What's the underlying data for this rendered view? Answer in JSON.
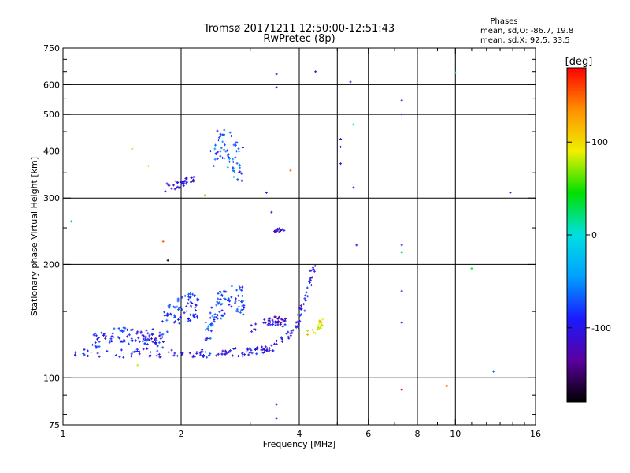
{
  "chart_data": {
    "type": "scatter",
    "title": "Tromsø 20171211 12:50:00-12:51:43",
    "subtitle": "RwPretec (8p)",
    "xlabel": "Frequency [MHz]",
    "ylabel": "Stationary phase Virtual Height [km]",
    "x_scale": "log",
    "y_scale": "log",
    "xlim": [
      1,
      16
    ],
    "ylim": [
      75,
      750
    ],
    "x_ticks": [
      {
        "value": 1,
        "label": "1"
      },
      {
        "value": 2,
        "label": "2"
      },
      {
        "value": 4,
        "label": "4"
      },
      {
        "value": 6,
        "label": "6"
      },
      {
        "value": 8,
        "label": "8"
      },
      {
        "value": 10,
        "label": "10"
      },
      {
        "value": 16,
        "label": "16"
      }
    ],
    "x_grid_lines": [
      2,
      4,
      5,
      6,
      8,
      10
    ],
    "y_ticks": [
      {
        "value": 75,
        "label": "75"
      },
      {
        "value": 100,
        "label": "100"
      },
      {
        "value": 200,
        "label": "200"
      },
      {
        "value": 300,
        "label": "300"
      },
      {
        "value": 400,
        "label": "400"
      },
      {
        "value": 500,
        "label": "500"
      },
      {
        "value": 600,
        "label": "600"
      },
      {
        "value": 750,
        "label": "750"
      }
    ],
    "y_grid_lines": [
      100,
      200,
      300,
      400,
      500,
      600
    ],
    "grid": true,
    "stats": {
      "header": "Phases",
      "line1": "mean, sd,O: -86.7, 19.8",
      "line2": "mean, sd,X:  92.5, 33.5"
    },
    "colorbar": {
      "label": "[deg]",
      "range": [
        -180,
        180
      ],
      "ticks": [
        {
          "value": 100,
          "label": "100"
        },
        {
          "value": 0,
          "label": "0"
        },
        {
          "value": -100,
          "label": "-100"
        }
      ],
      "stops": [
        "#000000",
        "#5a00a0",
        "#1a1aff",
        "#00a0ff",
        "#00e0e0",
        "#00e000",
        "#f0f000",
        "#ff9000",
        "#ff0000"
      ]
    },
    "traces": [
      {
        "kind": "band",
        "points": [
          [
            1.05,
            117
          ],
          [
            1.15,
            116
          ],
          [
            1.3,
            115
          ],
          [
            1.45,
            116
          ],
          [
            1.6,
            117
          ],
          [
            1.8,
            116
          ],
          [
            2.0,
            116
          ],
          [
            2.2,
            116
          ],
          [
            2.4,
            116
          ],
          [
            2.6,
            117
          ],
          [
            2.8,
            117
          ],
          [
            3.0,
            117
          ],
          [
            3.2,
            118
          ],
          [
            3.4,
            120
          ],
          [
            3.6,
            125
          ],
          [
            3.8,
            132
          ],
          [
            4.0,
            140
          ]
        ],
        "count": 140,
        "spread": 5,
        "phase": -100
      },
      {
        "kind": "band",
        "points": [
          [
            4.0,
            145
          ],
          [
            4.1,
            155
          ],
          [
            4.2,
            168
          ],
          [
            4.3,
            185
          ],
          [
            4.35,
            200
          ]
        ],
        "count": 30,
        "spread": 4,
        "phase": -95
      },
      {
        "kind": "band",
        "points": [
          [
            1.2,
            125
          ],
          [
            1.4,
            130
          ],
          [
            1.6,
            128
          ],
          [
            1.8,
            125
          ]
        ],
        "count": 90,
        "spread": 10,
        "phase": -90
      },
      {
        "kind": "band",
        "points": [
          [
            1.7,
            125
          ],
          [
            1.9,
            150
          ],
          [
            2.1,
            155
          ],
          [
            2.2,
            150
          ]
        ],
        "count": 80,
        "spread": 18,
        "phase": -85
      },
      {
        "kind": "band",
        "points": [
          [
            2.3,
            130
          ],
          [
            2.5,
            155
          ],
          [
            2.7,
            165
          ],
          [
            2.9,
            160
          ]
        ],
        "count": 90,
        "spread": 18,
        "phase": -80
      },
      {
        "kind": "band",
        "points": [
          [
            3.0,
            135
          ],
          [
            3.3,
            140
          ],
          [
            3.5,
            142
          ],
          [
            3.7,
            140
          ]
        ],
        "count": 45,
        "spread": 6,
        "phase": -110
      },
      {
        "kind": "band",
        "points": [
          [
            1.8,
            318
          ],
          [
            2.0,
            328
          ],
          [
            2.15,
            340
          ]
        ],
        "count": 40,
        "spread": 5,
        "phase": -105
      },
      {
        "kind": "band",
        "points": [
          [
            2.4,
            390
          ],
          [
            2.55,
            430
          ],
          [
            2.7,
            380
          ],
          [
            2.85,
            360
          ]
        ],
        "count": 60,
        "spread": 25,
        "phase": -70
      },
      {
        "kind": "band",
        "points": [
          [
            3.45,
            245
          ],
          [
            3.65,
            248
          ]
        ],
        "count": 14,
        "spread": 2,
        "phase": -110
      },
      {
        "kind": "band",
        "points": [
          [
            4.15,
            130
          ],
          [
            4.45,
            135
          ],
          [
            4.6,
            140
          ]
        ],
        "count": 18,
        "spread": 5,
        "phase": 95
      }
    ],
    "isolated_points": [
      [
        3.5,
        640,
        -100
      ],
      [
        4.4,
        650,
        -110
      ],
      [
        5.4,
        610,
        -95
      ],
      [
        10.0,
        645,
        20
      ],
      [
        3.5,
        590,
        -100
      ],
      [
        7.3,
        545,
        -100
      ],
      [
        7.3,
        500,
        -110
      ],
      [
        5.5,
        470,
        20
      ],
      [
        5.1,
        430,
        -110
      ],
      [
        5.1,
        410,
        -105
      ],
      [
        5.1,
        370,
        -100
      ],
      [
        5.5,
        320,
        -90
      ],
      [
        3.3,
        310,
        -100
      ],
      [
        3.8,
        355,
        150
      ],
      [
        3.4,
        275,
        -100
      ],
      [
        5.6,
        225,
        -90
      ],
      [
        7.3,
        225,
        -95
      ],
      [
        7.3,
        215,
        20
      ],
      [
        11.0,
        195,
        30
      ],
      [
        13.8,
        310,
        -100
      ],
      [
        7.3,
        170,
        -110
      ],
      [
        7.3,
        140,
        -100
      ],
      [
        9.5,
        95,
        150
      ],
      [
        7.3,
        93,
        180
      ],
      [
        12.5,
        104,
        -70
      ],
      [
        3.5,
        85,
        -105
      ],
      [
        3.5,
        78,
        -110
      ],
      [
        1.55,
        108,
        80
      ],
      [
        1.5,
        405,
        110
      ],
      [
        1.65,
        365,
        100
      ],
      [
        1.8,
        230,
        150
      ],
      [
        1.85,
        205,
        -180
      ],
      [
        2.3,
        305,
        70
      ],
      [
        1.05,
        260,
        20
      ],
      [
        1.0,
        105,
        -40
      ]
    ]
  }
}
